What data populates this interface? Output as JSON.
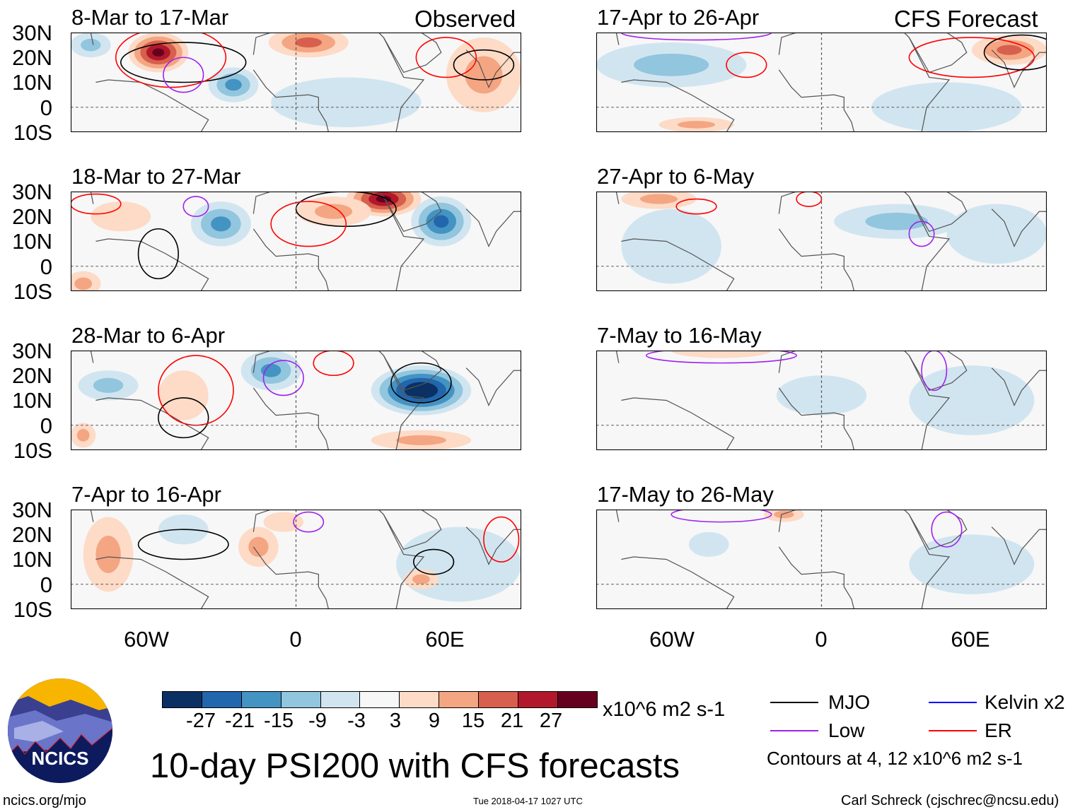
{
  "labels": {
    "observed": "Observed",
    "forecast": "CFS Forecast",
    "lat_ticks": [
      "30N",
      "20N",
      "10N",
      "0",
      "10S"
    ],
    "lon_ticks": [
      "60W",
      "0",
      "60E"
    ],
    "units": "x10^6 m2 s-1",
    "title": "10-day PSI200 with CFS forecasts",
    "contours_note": "Contours at 4, 12 x10^6 m2 s-1",
    "url": "ncics.org/mjo",
    "timestamp": "Tue 2018-04-17 1027 UTC",
    "author": "Carl Schreck (cjschrec@ncsu.edu)",
    "logo_text": "NCICS"
  },
  "legend": [
    {
      "label": "MJO",
      "color": "#000000"
    },
    {
      "label": "Kelvin x2",
      "color": "#0000ff"
    },
    {
      "label": "Low",
      "color": "#a020f0"
    },
    {
      "label": "ER",
      "color": "#ff0000"
    }
  ],
  "chart_data": {
    "type": "heatmap",
    "variable": "PSI200 anomaly",
    "xlim": [
      -90,
      90
    ],
    "ylim": [
      -10,
      30
    ],
    "colorbar": {
      "ticks": [
        "-27",
        "-21",
        "-15",
        "-9",
        "-3",
        "3",
        "9",
        "15",
        "21",
        "27"
      ],
      "colors": [
        "#0b3063",
        "#2266ad",
        "#4393c3",
        "#92c5de",
        "#d1e5f0",
        "#f7f7f7",
        "#fddbc7",
        "#f4a582",
        "#d6604d",
        "#b2182b",
        "#67001f"
      ]
    },
    "panels": [
      {
        "title": "8-Mar to 17-Mar",
        "blobs": [
          [
            -55,
            22,
            24,
            12,
            8
          ],
          [
            -25,
            9,
            -15,
            10,
            7
          ],
          [
            5,
            26,
            15,
            16,
            6
          ],
          [
            75,
            13,
            9,
            15,
            15
          ],
          [
            -82,
            25,
            -9,
            8,
            5
          ],
          [
            20,
            2,
            -3,
            30,
            10
          ]
        ],
        "contours": [
          [
            "mjo",
            -45,
            18,
            25,
            8
          ],
          [
            "er",
            -50,
            20,
            22,
            12
          ],
          [
            "low",
            -45,
            13,
            8,
            7
          ],
          [
            "er",
            60,
            20,
            12,
            8
          ],
          [
            "mjo",
            75,
            17,
            12,
            6
          ]
        ]
      },
      {
        "title": "18-Mar to 27-Mar",
        "blobs": [
          [
            35,
            27,
            27,
            15,
            7
          ],
          [
            -30,
            17,
            -15,
            12,
            9
          ],
          [
            58,
            18,
            -21,
            12,
            10
          ],
          [
            -85,
            -7,
            9,
            7,
            5
          ],
          [
            15,
            22,
            9,
            15,
            6
          ],
          [
            -70,
            20,
            3,
            12,
            6
          ]
        ],
        "contours": [
          [
            "mjo",
            20,
            23,
            20,
            7
          ],
          [
            "er",
            5,
            17,
            15,
            9
          ],
          [
            "mjo",
            -55,
            5,
            8,
            10
          ],
          [
            "low",
            -40,
            24,
            5,
            4
          ],
          [
            "er",
            -80,
            25,
            10,
            4
          ]
        ]
      },
      {
        "title": "28-Mar to 6-Apr",
        "blobs": [
          [
            50,
            14,
            -30,
            20,
            10
          ],
          [
            -10,
            22,
            -15,
            12,
            8
          ],
          [
            -75,
            16,
            -9,
            12,
            6
          ],
          [
            50,
            -6,
            9,
            20,
            4
          ],
          [
            -45,
            12,
            3,
            10,
            10
          ],
          [
            -85,
            -4,
            9,
            5,
            5
          ]
        ],
        "contours": [
          [
            "mjo",
            -45,
            3,
            10,
            8
          ],
          [
            "er",
            -40,
            14,
            15,
            14
          ],
          [
            "low",
            -5,
            19,
            8,
            7
          ],
          [
            "er",
            15,
            25,
            8,
            5
          ],
          [
            "mjo",
            50,
            17,
            12,
            8
          ]
        ]
      },
      {
        "title": "7-Apr to 16-Apr",
        "blobs": [
          [
            -75,
            12,
            6,
            10,
            15
          ],
          [
            -15,
            15,
            6,
            8,
            8
          ],
          [
            65,
            8,
            -3,
            25,
            15
          ],
          [
            -45,
            22,
            -3,
            10,
            6
          ],
          [
            -5,
            25,
            3,
            8,
            4
          ],
          [
            50,
            2,
            6,
            7,
            4
          ]
        ],
        "contours": [
          [
            "mjo",
            -45,
            16,
            18,
            6
          ],
          [
            "mjo",
            55,
            9,
            8,
            5
          ],
          [
            "er",
            82,
            18,
            7,
            9
          ],
          [
            "low",
            5,
            25,
            6,
            4
          ]
        ]
      },
      {
        "title": "17-Apr to 26-Apr",
        "blobs": [
          [
            -60,
            17,
            -9,
            30,
            9
          ],
          [
            75,
            23,
            15,
            15,
            6
          ],
          [
            50,
            0,
            -3,
            30,
            10
          ],
          [
            -50,
            -7,
            6,
            15,
            3
          ]
        ],
        "contours": [
          [
            "er",
            -30,
            17,
            8,
            5
          ],
          [
            "er",
            60,
            20,
            25,
            8
          ],
          [
            "mjo",
            80,
            22,
            15,
            7
          ],
          [
            "low",
            -50,
            30,
            30,
            3
          ]
        ]
      },
      {
        "title": "27-Apr to 6-May",
        "blobs": [
          [
            30,
            18,
            -9,
            25,
            7
          ],
          [
            70,
            13,
            -3,
            20,
            12
          ],
          [
            -60,
            8,
            -3,
            20,
            15
          ],
          [
            -65,
            27,
            6,
            15,
            4
          ]
        ],
        "contours": [
          [
            "er",
            -50,
            24,
            8,
            3
          ],
          [
            "low",
            40,
            13,
            5,
            5
          ],
          [
            "er",
            -5,
            27,
            5,
            3
          ]
        ]
      },
      {
        "title": "7-May to 16-May",
        "blobs": [
          [
            0,
            12,
            -3,
            18,
            8
          ],
          [
            60,
            10,
            -3,
            25,
            14
          ],
          [
            -40,
            30,
            3,
            20,
            3
          ]
        ],
        "contours": [
          [
            "low",
            -40,
            28,
            30,
            3
          ],
          [
            "low",
            45,
            22,
            5,
            8
          ]
        ]
      },
      {
        "title": "17-May to 26-May",
        "blobs": [
          [
            -45,
            16,
            -3,
            8,
            5
          ],
          [
            60,
            8,
            -3,
            25,
            12
          ],
          [
            -15,
            28,
            6,
            8,
            3
          ]
        ],
        "contours": [
          [
            "low",
            -40,
            28,
            20,
            3
          ],
          [
            "low",
            50,
            22,
            6,
            7
          ]
        ]
      }
    ]
  }
}
